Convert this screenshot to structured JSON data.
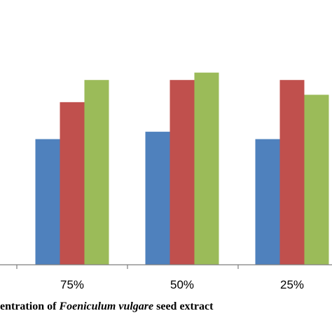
{
  "chart_data": {
    "type": "bar",
    "categories": [
      "75%",
      "50%",
      "25%"
    ],
    "series": [
      {
        "values": [
          52,
          53,
          52
        ],
        "color": "#4F81BD"
      },
      {
        "values": [
          57,
          60,
          60
        ],
        "color": "#C0504D"
      },
      {
        "values": [
          60,
          61,
          58
        ],
        "color": "#9BBB59"
      }
    ],
    "xlabel": {
      "prefix": "entration of ",
      "italic": "Foeniculum vulgare",
      "suffix": " seed extract"
    },
    "ylim": [
      35,
      64
    ],
    "grid": false
  }
}
